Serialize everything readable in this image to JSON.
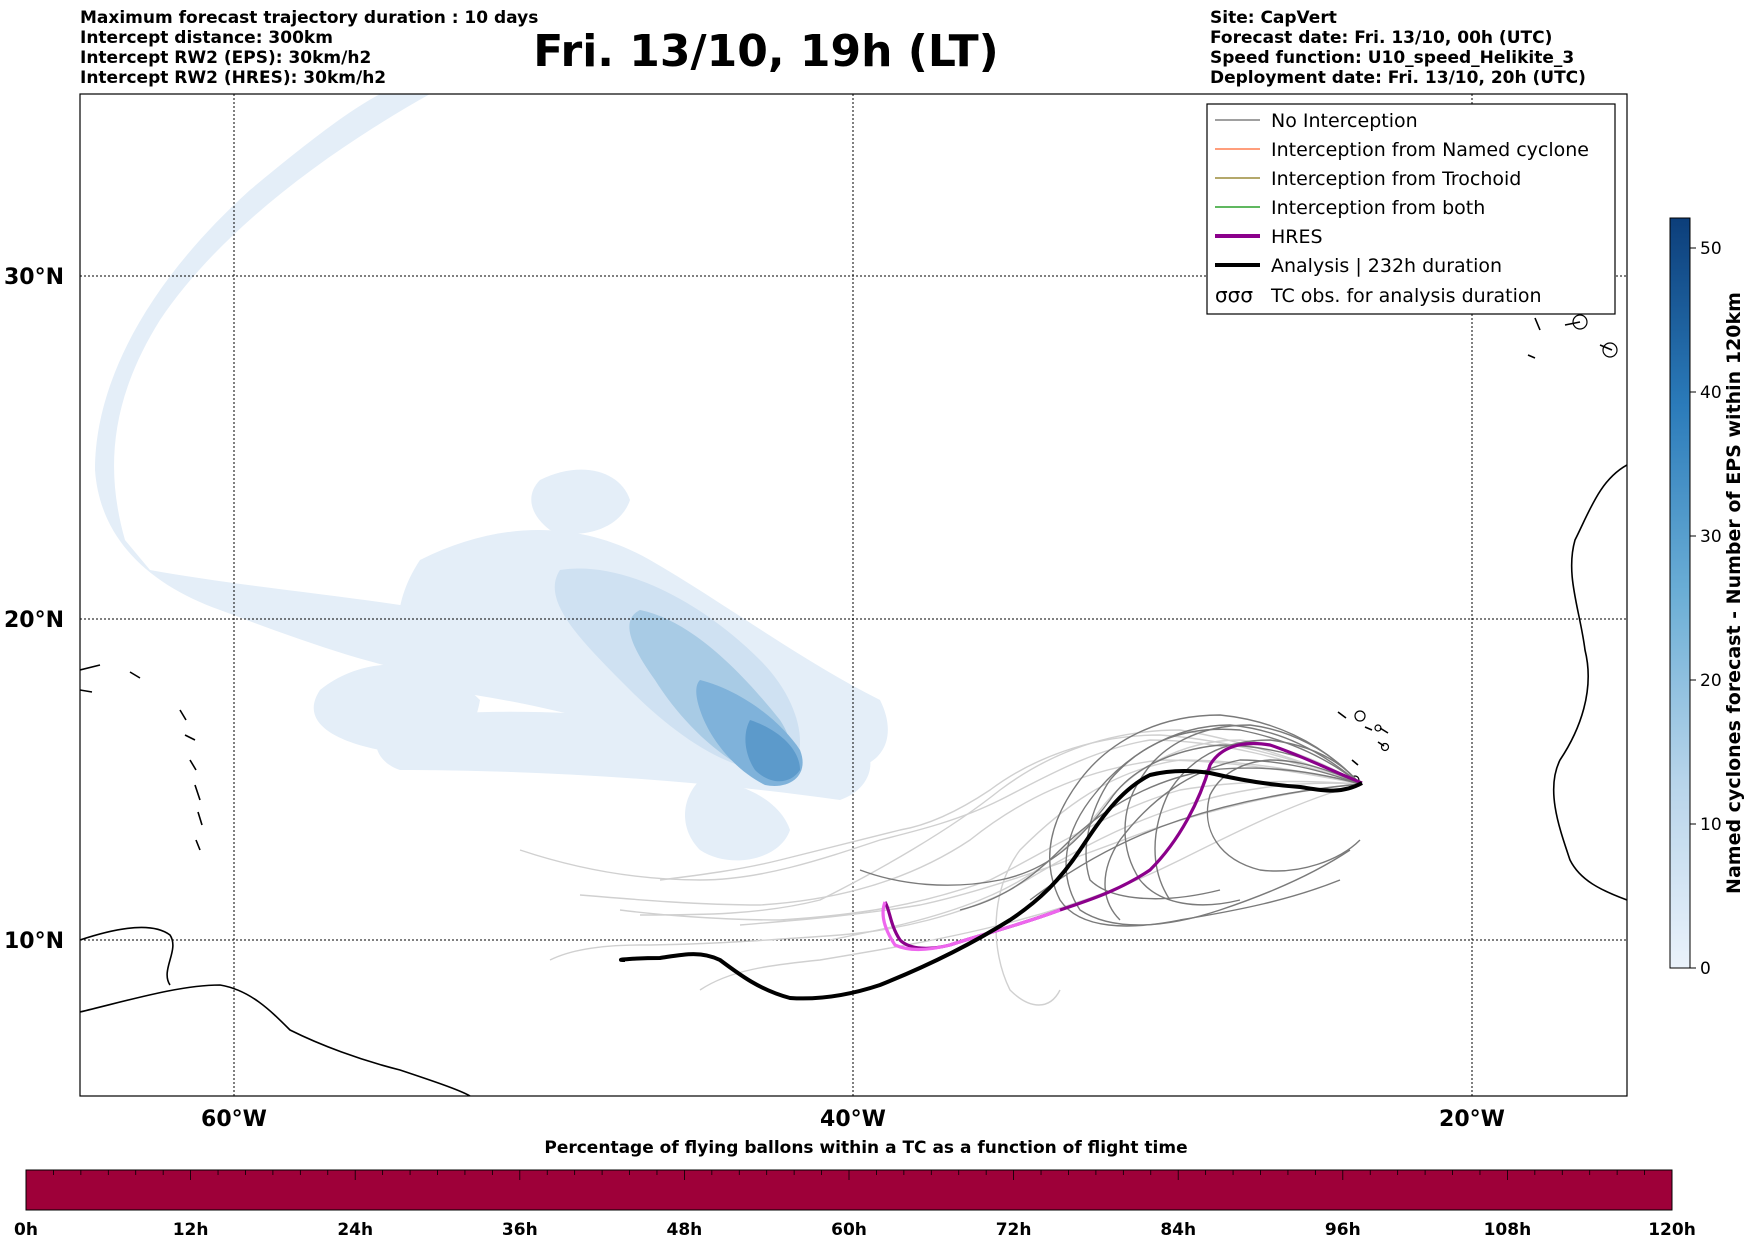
{
  "header_left": [
    "Maximum forecast trajectory duration : 10 days",
    "Intercept distance: 300km",
    "Intercept RW2 (EPS):  30km/h2",
    "Intercept RW2 (HRES): 30km/h2"
  ],
  "header_right": [
    "Site: CapVert",
    "Forecast date: Fri. 13/10, 00h (UTC)",
    "Speed function: U10_speed_Helikite_3",
    "Deployment date: Fri. 13/10, 20h (UTC)"
  ],
  "title": "Fri. 13/10, 19h (LT)",
  "map": {
    "lat_labels": [
      "30°N",
      "20°N",
      "10°N"
    ],
    "lon_labels": [
      "60°W",
      "40°W",
      "20°W"
    ]
  },
  "legend": [
    {
      "label": "No Interception",
      "color": "#808080"
    },
    {
      "label": "Interception from Named cyclone",
      "color": "#ff7f50"
    },
    {
      "label": "Interception from Trochoid",
      "color": "#9b8b3a"
    },
    {
      "label": "Interception from both",
      "color": "#2ca02c"
    },
    {
      "label": "HRES",
      "color": "#8b008b"
    },
    {
      "label": "Analysis | 232h duration",
      "color": "#000000"
    },
    {
      "label": "TC obs. for analysis duration",
      "color": "#000000",
      "symbol": "cyclone-icon"
    }
  ],
  "colorbar": {
    "label": "Named cyclones forecast - Number of EPS within 120km",
    "ticks": [
      "0",
      "10",
      "20",
      "30",
      "40",
      "50"
    ]
  },
  "bottom_bar": {
    "title": "Percentage of flying ballons within a TC as a function of flight time",
    "ticks": [
      "0h",
      "12h",
      "24h",
      "36h",
      "48h",
      "60h",
      "72h",
      "84h",
      "96h",
      "108h",
      "120h"
    ],
    "color": "#9e0039"
  }
}
